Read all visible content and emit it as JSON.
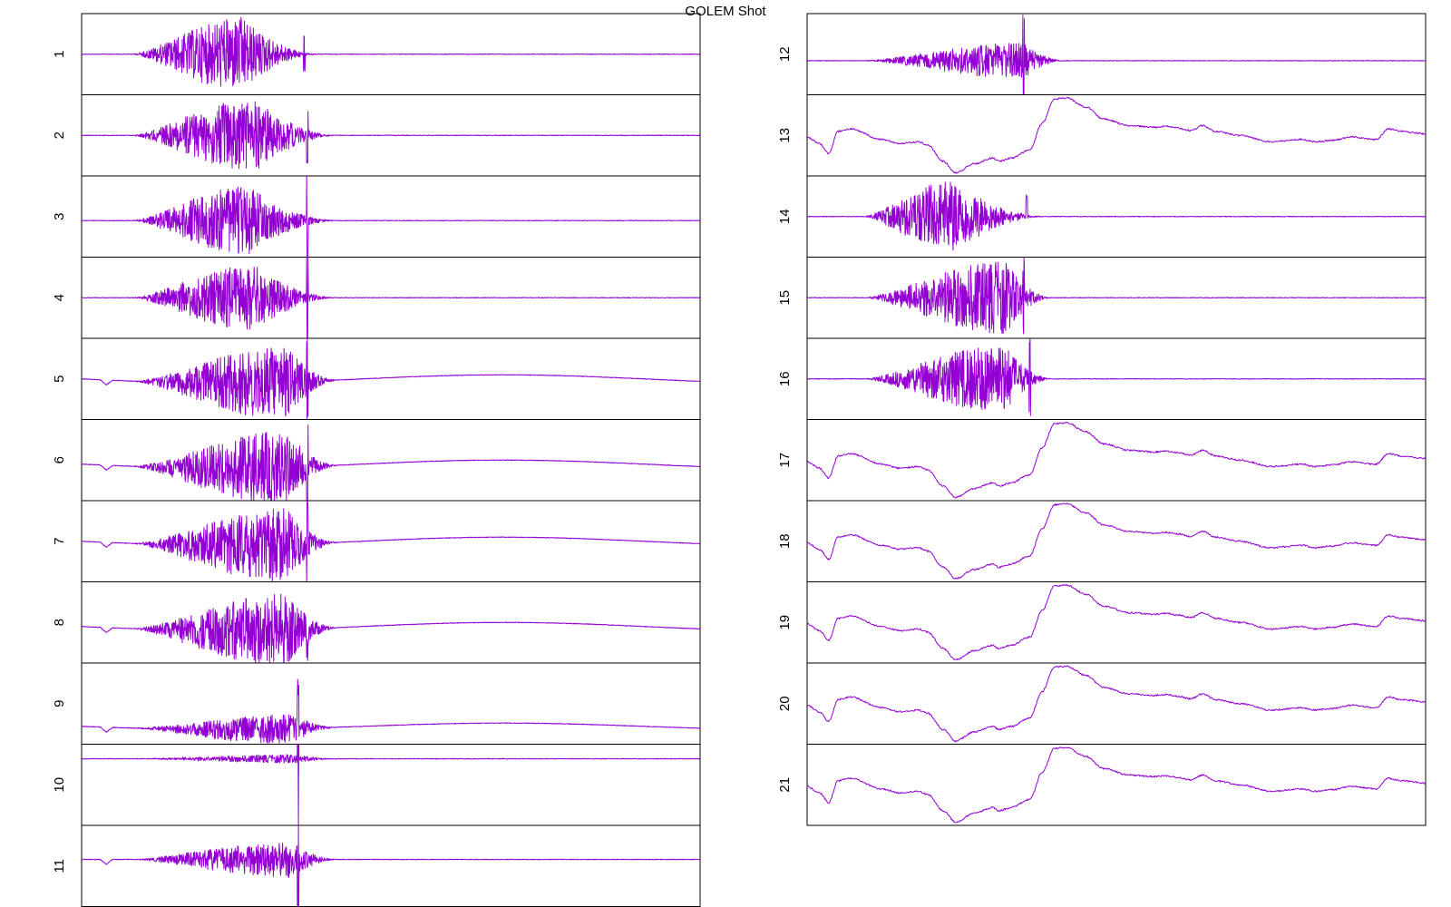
{
  "title": "GOLEM Shot",
  "colors": {
    "trace": "#9400d3",
    "frame": "#000000"
  },
  "chart_data": {
    "type": "line",
    "title": "GOLEM Shot",
    "xlabel": "",
    "ylabel": "",
    "grid": false,
    "legend": "none",
    "layout": "2 columns: 11 stacked panels left, 10 stacked panels right",
    "panels": [
      {
        "label": "1",
        "kind": "burst",
        "baseline": 0.5,
        "burst_start": 0.08,
        "burst_end": 0.36,
        "peak_at": 0.26,
        "amplitude": 0.45,
        "spike_at": 0.36,
        "spike_amp": 0.2
      },
      {
        "label": "2",
        "kind": "burst",
        "baseline": 0.5,
        "burst_start": 0.08,
        "burst_end": 0.39,
        "peak_at": 0.28,
        "amplitude": 0.45,
        "spike_at": 0.365,
        "spike_amp": 0.35
      },
      {
        "label": "3",
        "kind": "burst",
        "baseline": 0.55,
        "burst_start": 0.08,
        "burst_end": 0.39,
        "peak_at": 0.27,
        "amplitude": 0.42,
        "spike_at": 0.365,
        "spike_amp": 0.6
      },
      {
        "label": "4",
        "kind": "burst",
        "baseline": 0.5,
        "burst_start": 0.08,
        "burst_end": 0.39,
        "peak_at": 0.28,
        "amplitude": 0.4,
        "spike_at": 0.365,
        "spike_amp": 0.6
      },
      {
        "label": "5",
        "kind": "burst",
        "baseline": 0.5,
        "burst_start": 0.08,
        "burst_end": 0.39,
        "peak_at": 0.33,
        "amplitude": 0.45,
        "spike_at": 0.365,
        "spike_amp": 0.5,
        "dip_at": 0.04,
        "drift": 0.05
      },
      {
        "label": "6",
        "kind": "burst",
        "baseline": 0.55,
        "burst_start": 0.08,
        "burst_end": 0.39,
        "peak_at": 0.33,
        "amplitude": 0.45,
        "spike_at": 0.365,
        "spike_amp": 0.5,
        "dip_at": 0.04,
        "drift": 0.05
      },
      {
        "label": "7",
        "kind": "burst",
        "baseline": 0.5,
        "burst_start": 0.08,
        "burst_end": 0.39,
        "peak_at": 0.33,
        "amplitude": 0.45,
        "spike_at": 0.365,
        "spike_amp": 0.5,
        "dip_at": 0.04,
        "drift": 0.05
      },
      {
        "label": "8",
        "kind": "burst",
        "baseline": 0.55,
        "burst_start": 0.08,
        "burst_end": 0.39,
        "peak_at": 0.33,
        "amplitude": 0.45,
        "spike_at": 0.365,
        "spike_amp": 0.3,
        "dip_at": 0.04,
        "drift": 0.05
      },
      {
        "label": "9",
        "kind": "burst",
        "baseline": 0.78,
        "burst_start": 0.08,
        "burst_end": 0.39,
        "peak_at": 0.34,
        "amplitude": 0.18,
        "spike_at": 0.35,
        "spike_amp": 0.5,
        "dip_at": 0.04,
        "drift": 0.04
      },
      {
        "label": "10",
        "kind": "burst",
        "baseline": 0.18,
        "burst_start": 0.08,
        "burst_end": 0.39,
        "peak_at": 0.35,
        "amplitude": 0.05,
        "spike_at": 0.35,
        "spike_amp": 1.0
      },
      {
        "label": "11",
        "kind": "burst",
        "baseline": 0.42,
        "burst_start": 0.08,
        "burst_end": 0.39,
        "peak_at": 0.34,
        "amplitude": 0.22,
        "spike_at": 0.35,
        "spike_amp": 0.6,
        "dip_at": 0.04
      },
      {
        "label": "12",
        "kind": "burst",
        "baseline": 0.58,
        "burst_start": 0.09,
        "burst_end": 0.39,
        "peak_at": 0.35,
        "amplitude": 0.22,
        "spike_at": 0.35,
        "spike_amp": 0.6
      },
      {
        "label": "13",
        "kind": "wave"
      },
      {
        "label": "14",
        "kind": "burst",
        "baseline": 0.5,
        "burst_start": 0.09,
        "burst_end": 0.36,
        "peak_at": 0.24,
        "amplitude": 0.45,
        "spike_at": 0.355,
        "spike_amp": 0.25
      },
      {
        "label": "15",
        "kind": "burst",
        "baseline": 0.5,
        "burst_start": 0.09,
        "burst_end": 0.37,
        "peak_at": 0.32,
        "amplitude": 0.45,
        "spike_at": 0.35,
        "spike_amp": 0.5
      },
      {
        "label": "16",
        "kind": "burst",
        "baseline": 0.5,
        "burst_start": 0.09,
        "burst_end": 0.37,
        "peak_at": 0.32,
        "amplitude": 0.42,
        "spike_at": 0.36,
        "spike_amp": 0.5
      },
      {
        "label": "17",
        "kind": "wave"
      },
      {
        "label": "18",
        "kind": "wave"
      },
      {
        "label": "19",
        "kind": "wave"
      },
      {
        "label": "20",
        "kind": "wave"
      },
      {
        "label": "21",
        "kind": "wave"
      }
    ]
  }
}
